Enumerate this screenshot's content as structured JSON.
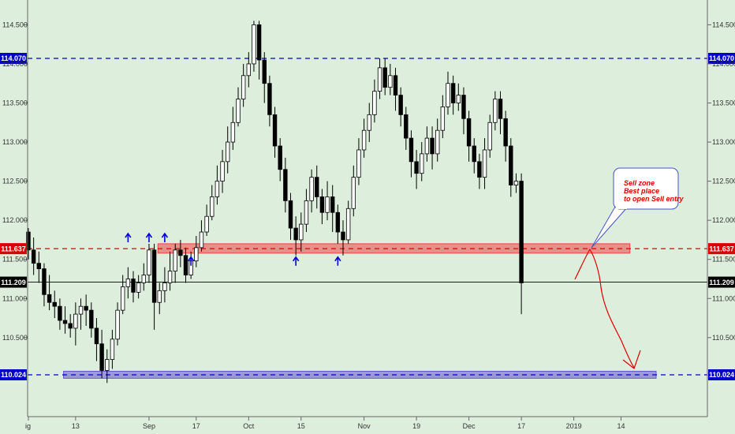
{
  "chart_data": {
    "type": "candlestick",
    "instrument_timeframe": "daily",
    "y_range": [
      109.8,
      114.85
    ],
    "y_ticks": [
      "114.500",
      "114.000",
      "113.500",
      "113.000",
      "112.500",
      "112.000",
      "111.500",
      "111.000",
      "110.500"
    ],
    "y_tick_values": [
      114.5,
      114.0,
      113.5,
      113.0,
      112.5,
      112.0,
      111.5,
      111.0,
      110.5
    ],
    "x_ticks": [
      {
        "label": "ig",
        "bar": 0
      },
      {
        "label": "13",
        "bar": 9
      },
      {
        "label": "Sep",
        "bar": 23
      },
      {
        "label": "17",
        "bar": 32
      },
      {
        "label": "Oct",
        "bar": 42
      },
      {
        "label": "15",
        "bar": 52
      },
      {
        "label": "Nov",
        "bar": 64
      },
      {
        "label": "19",
        "bar": 74
      },
      {
        "label": "Dec",
        "bar": 84
      },
      {
        "label": "17",
        "bar": 94
      },
      {
        "label": "2019",
        "bar": 104
      },
      {
        "label": "14",
        "bar": 113
      }
    ],
    "levels": [
      {
        "name": "resistance",
        "value": 114.07,
        "label": "114.070",
        "color": "#0000cc"
      },
      {
        "name": "sell-zone",
        "value": 111.637,
        "label": "111.637",
        "color": "#dd0000"
      },
      {
        "name": "last-price",
        "value": 111.209,
        "label": "111.209",
        "color": "#000000"
      },
      {
        "name": "support",
        "value": 110.024,
        "label": "110.024",
        "color": "#0000cc"
      }
    ],
    "zones": [
      {
        "name": "sell-zone-band",
        "from": 111.58,
        "to": 111.7,
        "color": "#ee4444",
        "start_bar": 25,
        "end_bar": 115
      },
      {
        "name": "support-band",
        "from": 109.98,
        "to": 110.07,
        "color": "#6655cc",
        "start_bar": 7,
        "end_bar": 120
      }
    ],
    "arrow_marks": [
      {
        "bar": 19,
        "dir": "up",
        "value": 111.82
      },
      {
        "bar": 23,
        "dir": "up",
        "value": 111.82
      },
      {
        "bar": 26,
        "dir": "up",
        "value": 111.82
      },
      {
        "bar": 31,
        "dir": "up",
        "value": 111.52
      },
      {
        "bar": 51,
        "dir": "up",
        "value": 111.52
      },
      {
        "bar": 59,
        "dir": "up",
        "value": 111.52
      }
    ],
    "candles": [
      [
        111.85,
        111.62,
        111.9,
        111.5
      ],
      [
        111.62,
        111.45,
        111.78,
        111.3
      ],
      [
        111.45,
        111.38,
        111.6,
        111.2
      ],
      [
        111.38,
        111.05,
        111.45,
        110.9
      ],
      [
        111.05,
        110.95,
        111.3,
        110.85
      ],
      [
        110.95,
        110.9,
        111.1,
        110.75
      ],
      [
        110.9,
        110.72,
        111.0,
        110.6
      ],
      [
        110.72,
        110.68,
        110.9,
        110.55
      ],
      [
        110.68,
        110.62,
        110.8,
        110.5
      ],
      [
        110.62,
        110.8,
        110.95,
        110.4
      ],
      [
        110.8,
        110.9,
        111.0,
        110.6
      ],
      [
        110.9,
        110.85,
        111.05,
        110.65
      ],
      [
        110.85,
        110.62,
        110.95,
        110.5
      ],
      [
        110.62,
        110.42,
        110.75,
        110.2
      ],
      [
        110.42,
        110.08,
        110.6,
        109.98
      ],
      [
        110.08,
        110.22,
        110.35,
        109.92
      ],
      [
        110.22,
        110.48,
        110.6,
        110.1
      ],
      [
        110.48,
        110.85,
        110.95,
        110.4
      ],
      [
        110.85,
        111.15,
        111.3,
        110.8
      ],
      [
        111.15,
        111.25,
        111.4,
        111.0
      ],
      [
        111.25,
        111.08,
        111.35,
        110.95
      ],
      [
        111.08,
        111.2,
        111.3,
        111.0
      ],
      [
        111.2,
        111.3,
        111.45,
        111.1
      ],
      [
        111.3,
        111.62,
        111.7,
        111.2
      ],
      [
        111.62,
        110.95,
        111.7,
        110.6
      ],
      [
        110.95,
        111.1,
        111.2,
        110.8
      ],
      [
        111.1,
        111.2,
        111.4,
        110.95
      ],
      [
        111.2,
        111.35,
        111.6,
        111.1
      ],
      [
        111.35,
        111.62,
        111.7,
        111.2
      ],
      [
        111.62,
        111.55,
        111.75,
        111.4
      ],
      [
        111.55,
        111.3,
        111.65,
        111.2
      ],
      [
        111.3,
        111.48,
        111.6,
        111.25
      ],
      [
        111.48,
        111.65,
        111.8,
        111.4
      ],
      [
        111.65,
        111.85,
        112.0,
        111.6
      ],
      [
        111.85,
        112.05,
        112.2,
        111.8
      ],
      [
        112.05,
        112.3,
        112.45,
        112.0
      ],
      [
        112.3,
        112.5,
        112.7,
        112.2
      ],
      [
        112.5,
        112.75,
        112.9,
        112.35
      ],
      [
        112.75,
        113.0,
        113.2,
        112.6
      ],
      [
        113.0,
        113.25,
        113.45,
        112.9
      ],
      [
        113.25,
        113.55,
        113.7,
        113.2
      ],
      [
        113.55,
        113.85,
        114.0,
        113.45
      ],
      [
        113.85,
        114.0,
        114.15,
        113.7
      ],
      [
        114.0,
        114.5,
        114.55,
        113.9
      ],
      [
        114.5,
        114.05,
        114.55,
        113.8
      ],
      [
        114.05,
        113.75,
        114.15,
        113.5
      ],
      [
        113.75,
        113.35,
        113.85,
        113.2
      ],
      [
        113.35,
        112.95,
        113.45,
        112.8
      ],
      [
        112.95,
        112.65,
        113.05,
        112.5
      ],
      [
        112.65,
        112.25,
        112.8,
        112.1
      ],
      [
        112.25,
        111.9,
        112.35,
        111.75
      ],
      [
        111.9,
        111.75,
        112.05,
        111.55
      ],
      [
        111.75,
        111.95,
        112.1,
        111.6
      ],
      [
        111.95,
        112.25,
        112.4,
        111.85
      ],
      [
        112.25,
        112.55,
        112.65,
        112.1
      ],
      [
        112.55,
        112.3,
        112.7,
        112.15
      ],
      [
        112.3,
        112.1,
        112.4,
        111.95
      ],
      [
        112.1,
        112.3,
        112.5,
        112.0
      ],
      [
        112.3,
        112.1,
        112.45,
        111.85
      ],
      [
        112.1,
        111.85,
        112.2,
        111.7
      ],
      [
        111.85,
        111.75,
        112.0,
        111.55
      ],
      [
        111.75,
        112.15,
        112.25,
        111.7
      ],
      [
        112.15,
        112.55,
        112.7,
        112.05
      ],
      [
        112.55,
        112.9,
        113.05,
        112.45
      ],
      [
        112.9,
        113.15,
        113.3,
        112.8
      ],
      [
        113.15,
        113.35,
        113.5,
        113.0
      ],
      [
        113.35,
        113.65,
        113.8,
        113.25
      ],
      [
        113.65,
        113.95,
        114.07,
        113.55
      ],
      [
        113.95,
        113.7,
        114.07,
        113.6
      ],
      [
        113.7,
        113.85,
        114.0,
        113.6
      ],
      [
        113.85,
        113.6,
        113.95,
        113.4
      ],
      [
        113.6,
        113.35,
        113.7,
        113.2
      ],
      [
        113.35,
        113.05,
        113.45,
        112.9
      ],
      [
        113.05,
        112.75,
        113.15,
        112.55
      ],
      [
        112.75,
        112.6,
        112.9,
        112.4
      ],
      [
        112.6,
        112.85,
        113.0,
        112.5
      ],
      [
        112.85,
        113.05,
        113.2,
        112.75
      ],
      [
        113.05,
        112.85,
        113.2,
        112.65
      ],
      [
        112.85,
        113.15,
        113.3,
        112.75
      ],
      [
        113.15,
        113.45,
        113.6,
        113.05
      ],
      [
        113.45,
        113.75,
        113.9,
        113.35
      ],
      [
        113.75,
        113.5,
        113.85,
        113.35
      ],
      [
        113.5,
        113.6,
        113.75,
        113.4
      ],
      [
        113.6,
        113.3,
        113.7,
        113.1
      ],
      [
        113.3,
        112.95,
        113.4,
        112.75
      ],
      [
        112.95,
        112.75,
        113.05,
        112.6
      ],
      [
        112.75,
        112.55,
        112.85,
        112.4
      ],
      [
        112.55,
        112.9,
        113.05,
        112.4
      ],
      [
        112.9,
        113.25,
        113.35,
        112.8
      ],
      [
        113.25,
        113.55,
        113.65,
        113.15
      ],
      [
        113.55,
        113.3,
        113.65,
        113.1
      ],
      [
        113.3,
        112.95,
        113.4,
        112.75
      ],
      [
        112.95,
        112.45,
        113.05,
        112.3
      ],
      [
        112.45,
        112.5,
        112.6,
        112.35
      ],
      [
        112.5,
        111.2,
        112.6,
        110.8
      ]
    ],
    "annotation": {
      "lines": [
        "Sell zone",
        "Best place",
        "to open Sell entry"
      ],
      "color": "#e00000"
    }
  }
}
